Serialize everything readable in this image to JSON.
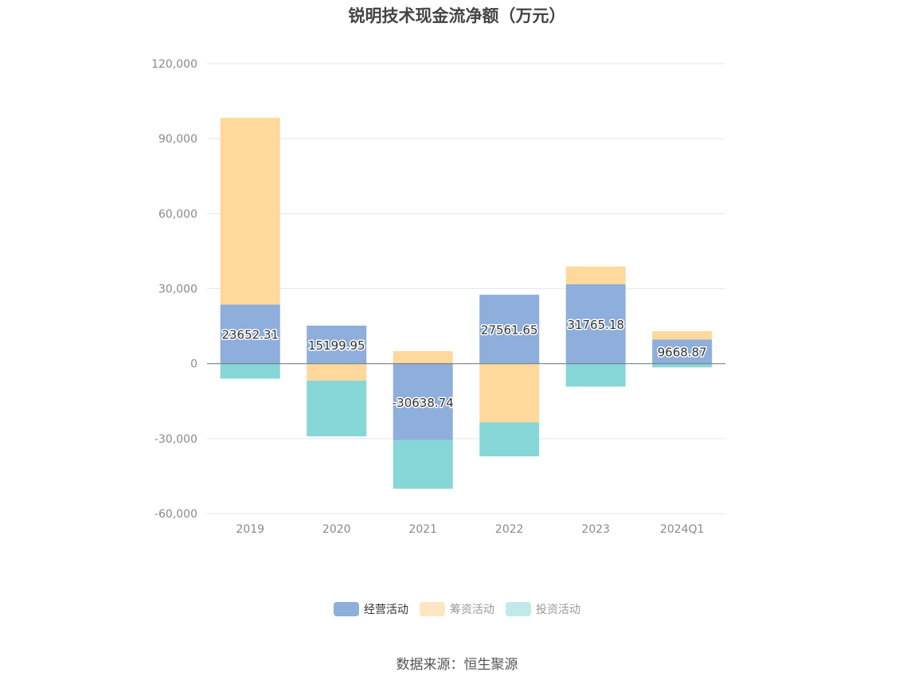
{
  "chart_data": {
    "type": "bar",
    "stacked": true,
    "title": "锐明技术现金流净额（万元）",
    "categories": [
      "2019",
      "2020",
      "2021",
      "2022",
      "2023",
      "2024Q1"
    ],
    "series": [
      {
        "name": "经营活动",
        "color": "#8eaedb",
        "values": [
          23652.31,
          15199.95,
          -30638.74,
          27561.65,
          31765.18,
          9668.87
        ],
        "labels": [
          "23652.31",
          "15199.95",
          "-30638.74",
          "27561.65",
          "31765.18",
          "9668.87"
        ]
      },
      {
        "name": "筹资活动",
        "color": "#ffd89c",
        "values": [
          74700,
          -6800,
          5000,
          -23500,
          7100,
          3300
        ]
      },
      {
        "name": "投资活动",
        "color": "#87d6d8",
        "values": [
          -6000,
          -22300,
          -19400,
          -13600,
          -9200,
          -1500
        ]
      }
    ],
    "yaxis": {
      "ticks": [
        120000,
        90000,
        60000,
        30000,
        0,
        -30000,
        -60000
      ],
      "tick_labels": [
        "120,000",
        "90,000",
        "60,000",
        "30,000",
        "0",
        "-30,000",
        "-60,000"
      ],
      "ylim": [
        -60000,
        120000
      ]
    },
    "legend_inactive_color": "#999999",
    "legend_active_color": "#333333",
    "legend_inactive_swatches": [
      "#fde6c2",
      "#c2e9ea"
    ],
    "legend": [
      {
        "label": "经营活动"
      },
      {
        "label": "筹资活动"
      },
      {
        "label": "投资活动"
      }
    ],
    "grid": true,
    "legend_position": "bottom",
    "source": "数据来源：恒生聚源"
  }
}
